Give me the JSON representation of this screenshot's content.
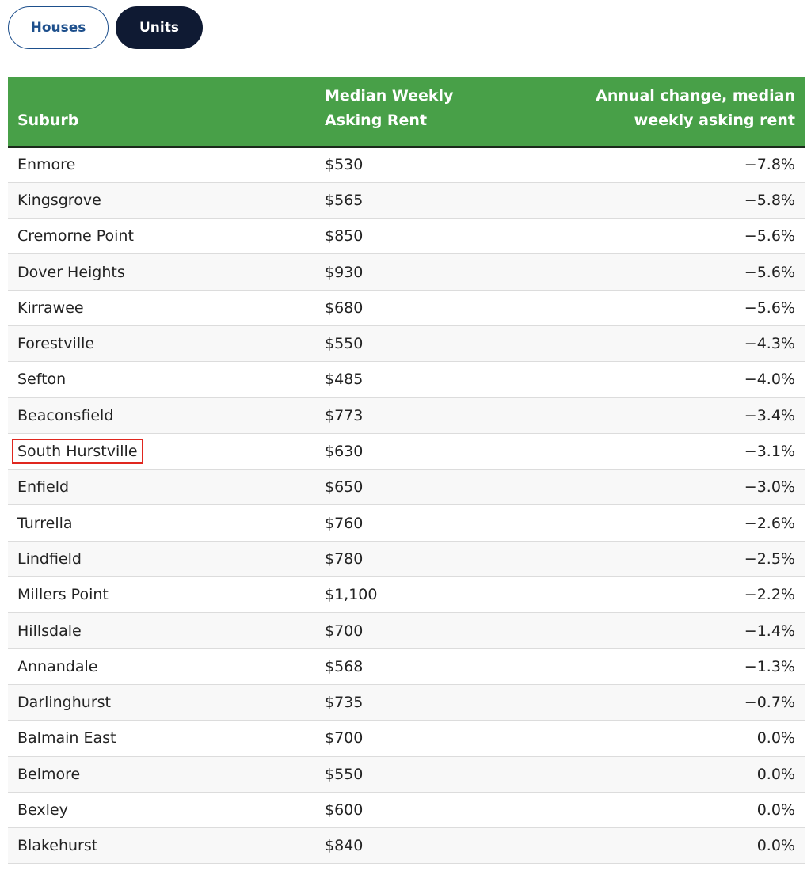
{
  "tabs": [
    "Houses",
    "Units"
  ],
  "table": {
    "header": [
      "Suburb",
      "Median Weekly Asking Rent",
      "Annual change, median weekly asking rent"
    ],
    "rows": [
      [
        "Enmore",
        "$530",
        "−7.8%"
      ],
      [
        "Kingsgrove",
        "$565",
        "−5.8%"
      ],
      [
        "Cremorne Point",
        "$850",
        "−5.6%"
      ],
      [
        "Dover Heights",
        "$930",
        "−5.6%"
      ],
      [
        "Kirrawee",
        "$680",
        "−5.6%"
      ],
      [
        "Forestville",
        "$550",
        "−4.3%"
      ],
      [
        "Sefton",
        "$485",
        "−4.0%"
      ],
      [
        "Beaconsfield",
        "$773",
        "−3.4%"
      ],
      [
        "South Hurstville",
        "$630",
        "−3.1%"
      ],
      [
        "Enfield",
        "$650",
        "−3.0%"
      ],
      [
        "Turrella",
        "$760",
        "−2.6%"
      ],
      [
        "Lindfield",
        "$780",
        "−2.5%"
      ],
      [
        "Millers Point",
        "$1,100",
        "−2.2%"
      ],
      [
        "Hillsdale",
        "$700",
        "−1.4%"
      ],
      [
        "Annandale",
        "$568",
        "−1.3%"
      ],
      [
        "Darlinghurst",
        "$735",
        "−0.7%"
      ],
      [
        "Balmain East",
        "$700",
        "0.0%"
      ],
      [
        "Belmore",
        "$550",
        "0.0%"
      ],
      [
        "Bexley",
        "$600",
        "0.0%"
      ],
      [
        "Blakehurst",
        "$840",
        "0.0%"
      ]
    ]
  }
}
